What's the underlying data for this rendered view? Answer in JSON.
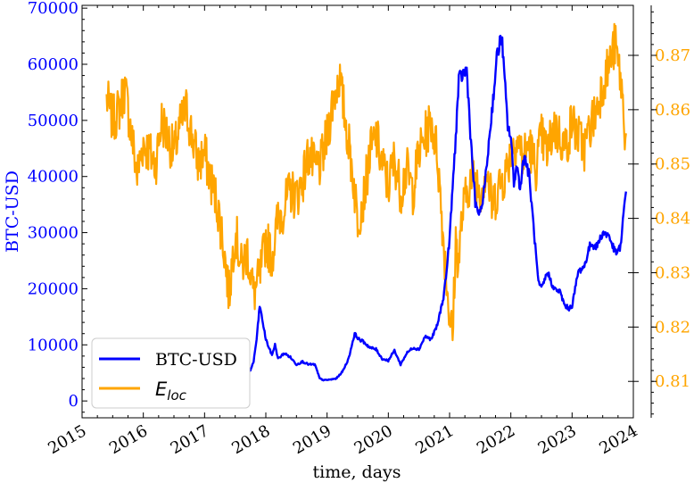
{
  "chart_data": {
    "type": "line",
    "xlabel": "time, days",
    "ylabel_left": "BTC-USD",
    "ylabel_right": "",
    "x_ticks": [
      "2015",
      "2016",
      "2017",
      "2018",
      "2019",
      "2020",
      "2021",
      "2022",
      "2023",
      "2024"
    ],
    "y_left_ticks": [
      "0",
      "10000",
      "20000",
      "30000",
      "40000",
      "50000",
      "60000",
      "70000"
    ],
    "y_right_ticks": [
      "0.81",
      "0.82",
      "0.83",
      "0.84",
      "0.85",
      "0.86",
      "0.87"
    ],
    "xlim": [
      2015.0,
      2024.0
    ],
    "ylim_left": [
      -3000,
      70500
    ],
    "ylim_right": [
      0.8033,
      0.8792
    ],
    "legend_position": "lower-left",
    "colors": {
      "left": "#0000ff",
      "right": "#ffa500"
    },
    "series": [
      {
        "name": "BTC-USD",
        "axis": "left",
        "color": "#0000ff",
        "x": [
          2017.65,
          2017.75,
          2017.8,
          2017.85,
          2017.9,
          2017.95,
          2018.0,
          2018.05,
          2018.1,
          2018.15,
          2018.2,
          2018.3,
          2018.4,
          2018.5,
          2018.6,
          2018.7,
          2018.8,
          2018.88,
          2018.95,
          2019.05,
          2019.15,
          2019.25,
          2019.35,
          2019.45,
          2019.52,
          2019.6,
          2019.7,
          2019.8,
          2019.9,
          2020.0,
          2020.1,
          2020.2,
          2020.3,
          2020.4,
          2020.5,
          2020.6,
          2020.7,
          2020.8,
          2020.9,
          2020.95,
          2021.0,
          2021.05,
          2021.1,
          2021.15,
          2021.2,
          2021.28,
          2021.35,
          2021.42,
          2021.5,
          2021.58,
          2021.65,
          2021.72,
          2021.78,
          2021.85,
          2021.9,
          2021.95,
          2022.0,
          2022.05,
          2022.1,
          2022.15,
          2022.22,
          2022.3,
          2022.38,
          2022.45,
          2022.5,
          2022.6,
          2022.7,
          2022.8,
          2022.88,
          2022.95,
          2023.0,
          2023.1,
          2023.2,
          2023.3,
          2023.4,
          2023.5,
          2023.6,
          2023.7,
          2023.75,
          2023.8,
          2023.85,
          2023.88
        ],
        "values": [
          4500,
          5500,
          7000,
          11000,
          17000,
          14000,
          11000,
          9500,
          8200,
          10000,
          7500,
          8500,
          7800,
          6500,
          7000,
          6500,
          6500,
          4000,
          3700,
          3800,
          4000,
          5200,
          7500,
          12000,
          11000,
          10500,
          9500,
          9200,
          7500,
          7200,
          9000,
          6500,
          8500,
          9500,
          9200,
          11500,
          11000,
          13500,
          18500,
          23000,
          29000,
          38000,
          47000,
          57000,
          58000,
          59000,
          46000,
          35000,
          33000,
          39000,
          47000,
          55000,
          62000,
          65000,
          57000,
          49000,
          47000,
          39000,
          42000,
          38000,
          44000,
          40000,
          30000,
          21000,
          20000,
          23000,
          20000,
          19500,
          17000,
          16500,
          17000,
          23000,
          24000,
          28000,
          27500,
          30000,
          29500,
          26500,
          26500,
          28000,
          34500,
          37500
        ]
      },
      {
        "name": "E_loc",
        "axis": "right",
        "color": "#ffa500",
        "x": [
          2015.4,
          2015.5,
          2015.6,
          2015.7,
          2015.8,
          2015.9,
          2016.0,
          2016.1,
          2016.2,
          2016.3,
          2016.4,
          2016.5,
          2016.6,
          2016.7,
          2016.8,
          2016.9,
          2017.0,
          2017.1,
          2017.2,
          2017.3,
          2017.4,
          2017.5,
          2017.6,
          2017.7,
          2017.8,
          2017.9,
          2018.0,
          2018.1,
          2018.2,
          2018.3,
          2018.4,
          2018.5,
          2018.6,
          2018.7,
          2018.8,
          2018.9,
          2019.0,
          2019.1,
          2019.2,
          2019.3,
          2019.4,
          2019.5,
          2019.6,
          2019.7,
          2019.8,
          2019.9,
          2020.0,
          2020.1,
          2020.2,
          2020.3,
          2020.4,
          2020.5,
          2020.6,
          2020.7,
          2020.8,
          2020.9,
          2021.0,
          2021.05,
          2021.1,
          2021.15,
          2021.2,
          2021.3,
          2021.4,
          2021.5,
          2021.6,
          2021.7,
          2021.8,
          2021.9,
          2022.0,
          2022.1,
          2022.2,
          2022.3,
          2022.4,
          2022.5,
          2022.6,
          2022.7,
          2022.8,
          2022.9,
          2023.0,
          2023.1,
          2023.2,
          2023.3,
          2023.4,
          2023.5,
          2023.6,
          2023.7,
          2023.8,
          2023.85,
          2023.88
        ],
        "values": [
          0.862,
          0.858,
          0.86,
          0.864,
          0.856,
          0.848,
          0.854,
          0.852,
          0.85,
          0.858,
          0.855,
          0.852,
          0.857,
          0.86,
          0.855,
          0.85,
          0.852,
          0.847,
          0.843,
          0.836,
          0.826,
          0.838,
          0.831,
          0.834,
          0.826,
          0.829,
          0.836,
          0.833,
          0.84,
          0.842,
          0.845,
          0.844,
          0.847,
          0.852,
          0.849,
          0.85,
          0.855,
          0.862,
          0.866,
          0.858,
          0.85,
          0.84,
          0.844,
          0.852,
          0.855,
          0.85,
          0.846,
          0.851,
          0.845,
          0.849,
          0.845,
          0.852,
          0.855,
          0.858,
          0.852,
          0.836,
          0.822,
          0.818,
          0.836,
          0.832,
          0.84,
          0.846,
          0.848,
          0.845,
          0.849,
          0.842,
          0.846,
          0.848,
          0.852,
          0.855,
          0.851,
          0.854,
          0.849,
          0.855,
          0.852,
          0.857,
          0.855,
          0.853,
          0.858,
          0.855,
          0.853,
          0.857,
          0.86,
          0.865,
          0.868,
          0.872,
          0.865,
          0.858,
          0.854
        ]
      }
    ]
  }
}
